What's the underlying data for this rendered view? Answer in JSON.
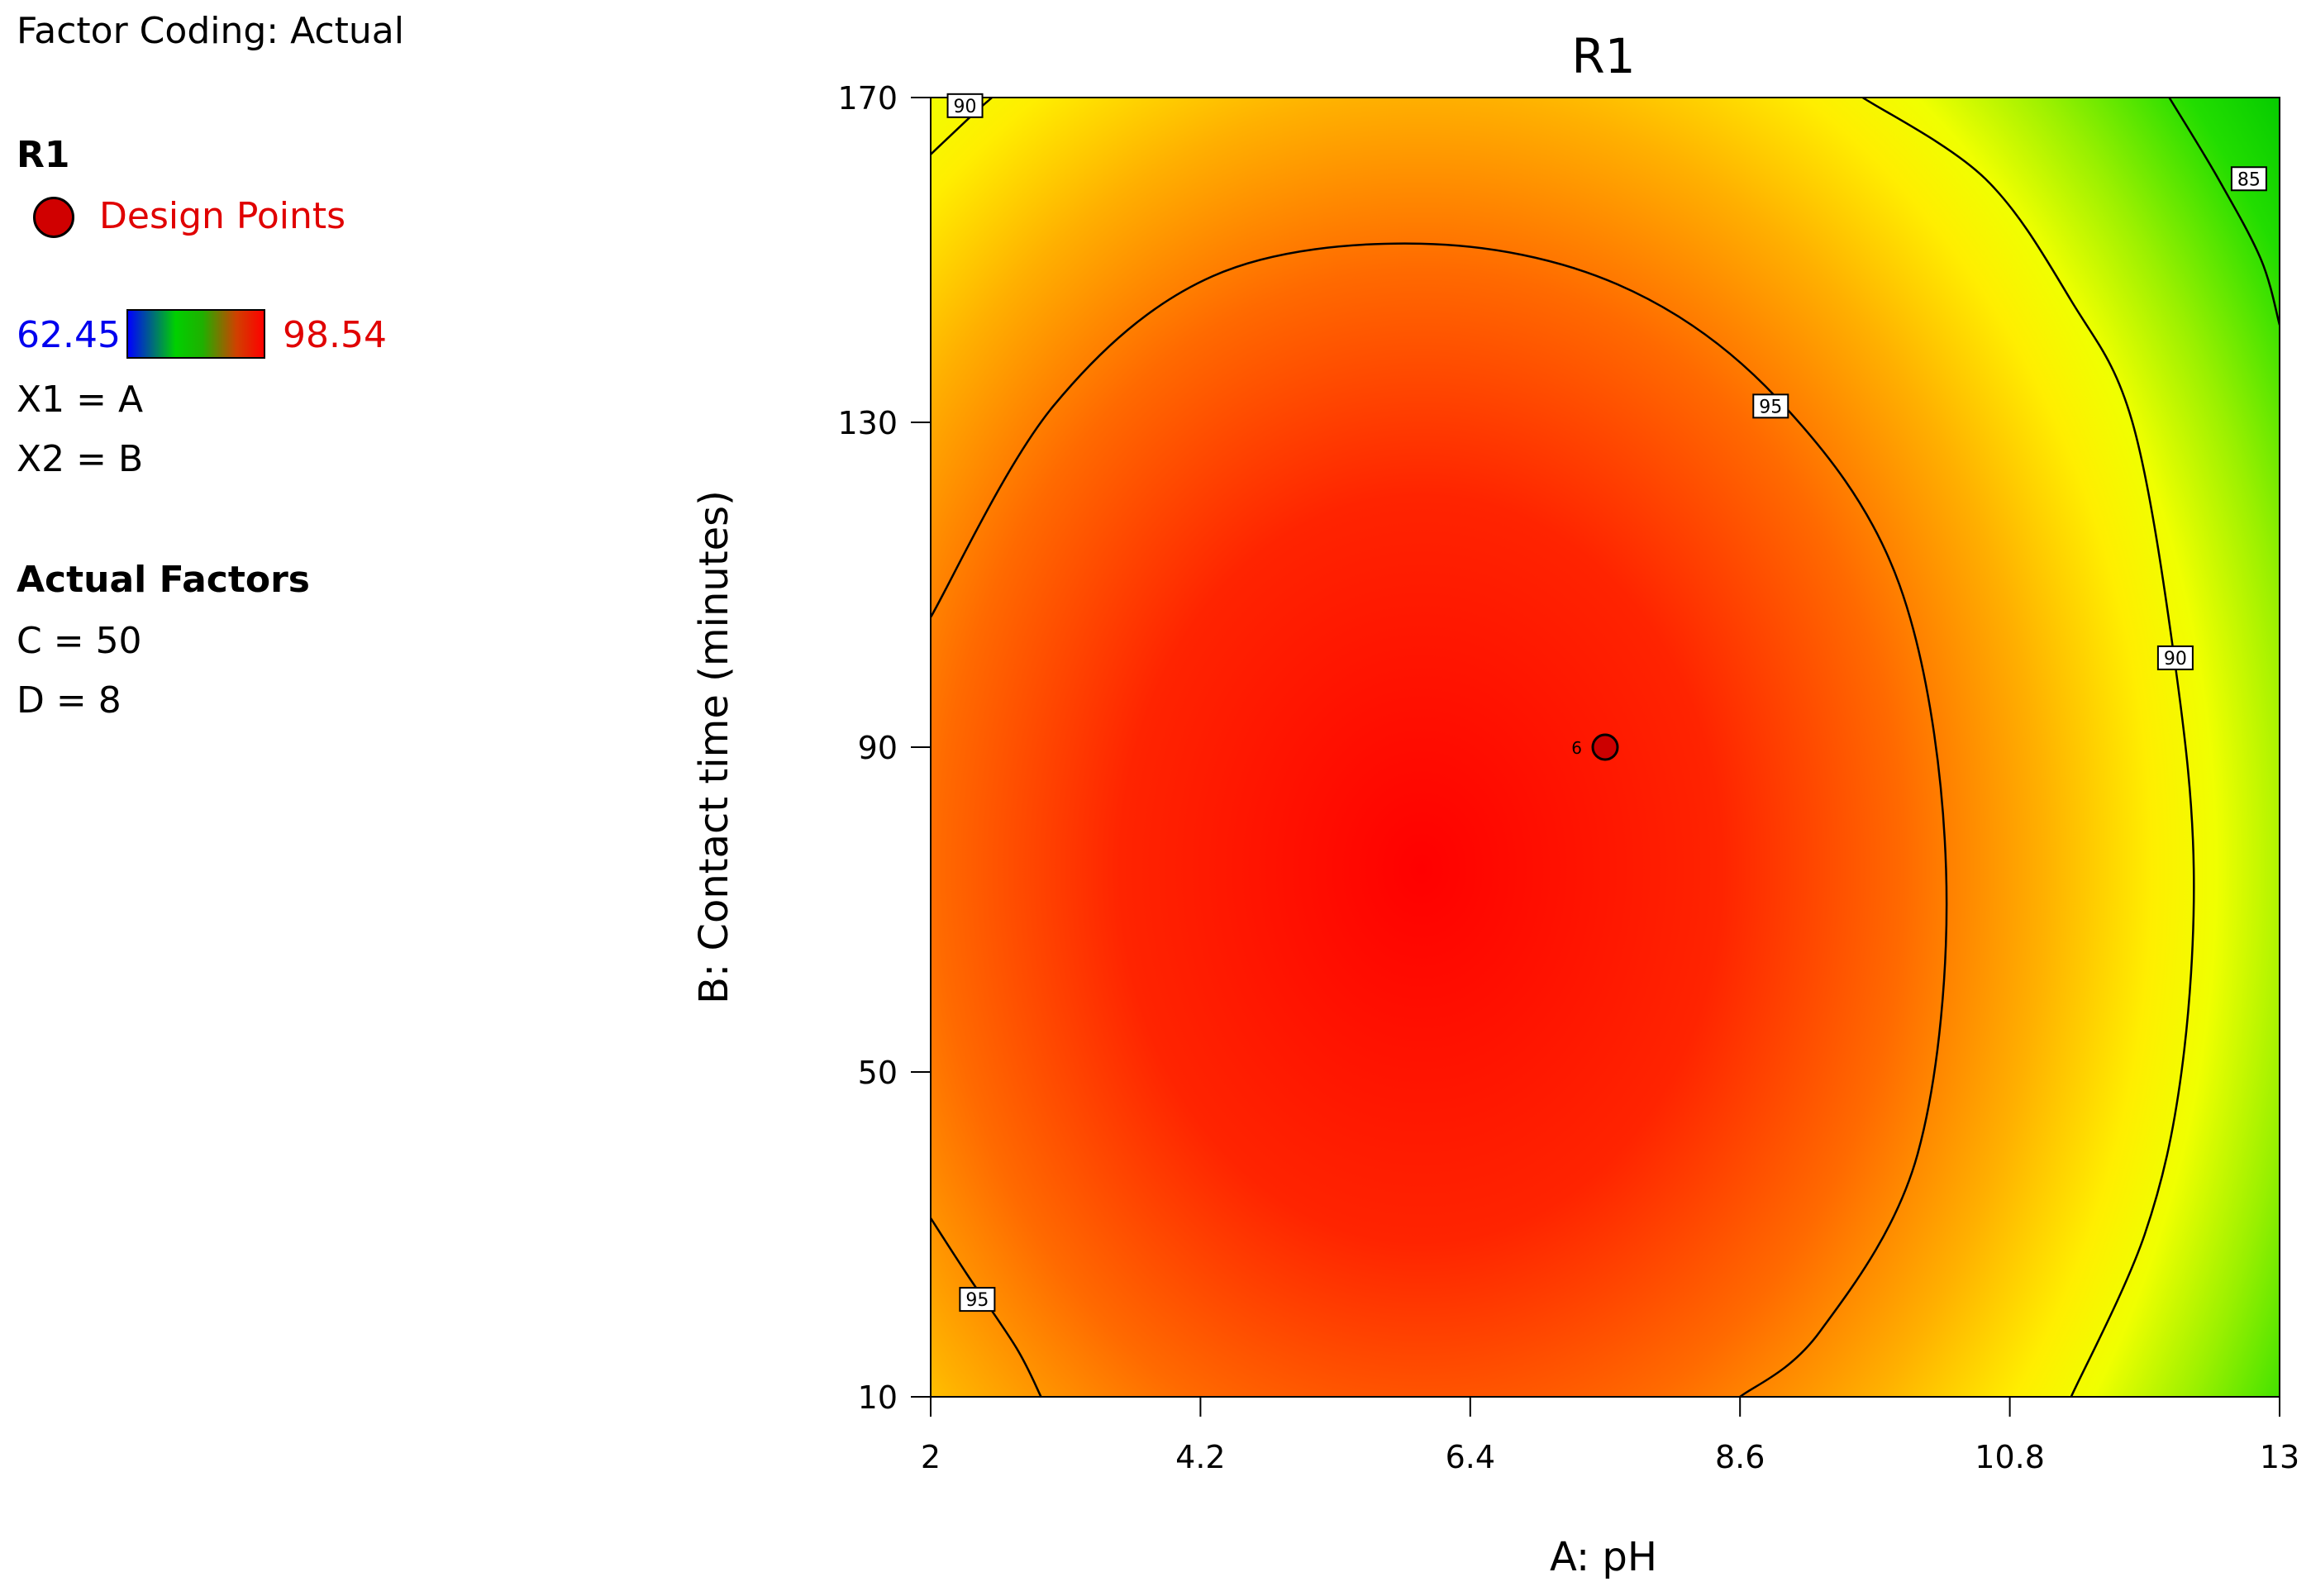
{
  "legend": {
    "factor_coding": "Factor Coding: Actual",
    "response_name": "R1",
    "design_points_label": "Design Points",
    "colorbar_min": "62.45",
    "colorbar_max": "98.54",
    "x1_mapping": "X1 = A",
    "x2_mapping": "X2 = B",
    "actual_factors_heading": "Actual Factors",
    "factor_c": "C = 50",
    "factor_d": "D = 8"
  },
  "chart_data": {
    "type": "contour",
    "title": "R1",
    "xlabel": "A: pH",
    "ylabel": "B: Contact time (minutes)",
    "xlim": [
      2,
      13
    ],
    "ylim": [
      10,
      170
    ],
    "xticks": [
      2,
      4.2,
      6.4,
      8.6,
      10.8,
      13
    ],
    "xtick_labels": [
      "2",
      "4.2",
      "6.4",
      "8.6",
      "10.8",
      "13"
    ],
    "yticks": [
      10,
      50,
      90,
      130,
      170
    ],
    "ytick_labels": [
      "10",
      "50",
      "90",
      "130",
      "170"
    ],
    "colorbar_range": [
      62.45,
      98.54
    ],
    "response_peak": {
      "x": 6.0,
      "y": 75,
      "value": 98.54
    },
    "contour_levels": [
      {
        "value": 95,
        "label": "95",
        "segments": [
          [
            [
              2.0,
              106
            ],
            [
              3.0,
              132
            ],
            [
              4.3,
              148
            ],
            [
              6.0,
              152
            ],
            [
              7.6,
              147
            ],
            [
              8.9,
              133
            ],
            [
              9.9,
              110
            ],
            [
              10.28,
              75
            ],
            [
              10.05,
              40
            ],
            [
              9.25,
              18
            ],
            [
              8.6,
              10
            ]
          ],
          [
            [
              2.0,
              32
            ],
            [
              2.3,
              25
            ],
            [
              2.7,
              16
            ],
            [
              2.9,
              10
            ]
          ]
        ],
        "label_positions": [
          [
            8.85,
            132
          ],
          [
            2.38,
            22
          ]
        ]
      },
      {
        "value": 90,
        "label": "90",
        "segments": [
          [
            [
              9.6,
              170
            ],
            [
              10.6,
              160
            ],
            [
              11.3,
              145
            ],
            [
              11.8,
              130
            ],
            [
              12.15,
              100
            ],
            [
              12.3,
              75
            ],
            [
              12.2,
              50
            ],
            [
              11.9,
              30
            ],
            [
              11.3,
              10
            ]
          ],
          [
            [
              2.0,
              163
            ],
            [
              2.35,
              168
            ],
            [
              2.5,
              170
            ]
          ]
        ],
        "label_positions": [
          [
            12.15,
            101
          ],
          [
            2.28,
            169
          ]
        ]
      },
      {
        "value": 85,
        "label": "85",
        "segments": [
          [
            [
              12.1,
              170
            ],
            [
              12.5,
              160
            ],
            [
              12.85,
              150
            ],
            [
              13.0,
              142
            ]
          ]
        ],
        "label_positions": [
          [
            12.75,
            160
          ]
        ]
      }
    ],
    "design_points": [
      {
        "x": 7.5,
        "y": 90,
        "label": "6"
      }
    ]
  }
}
